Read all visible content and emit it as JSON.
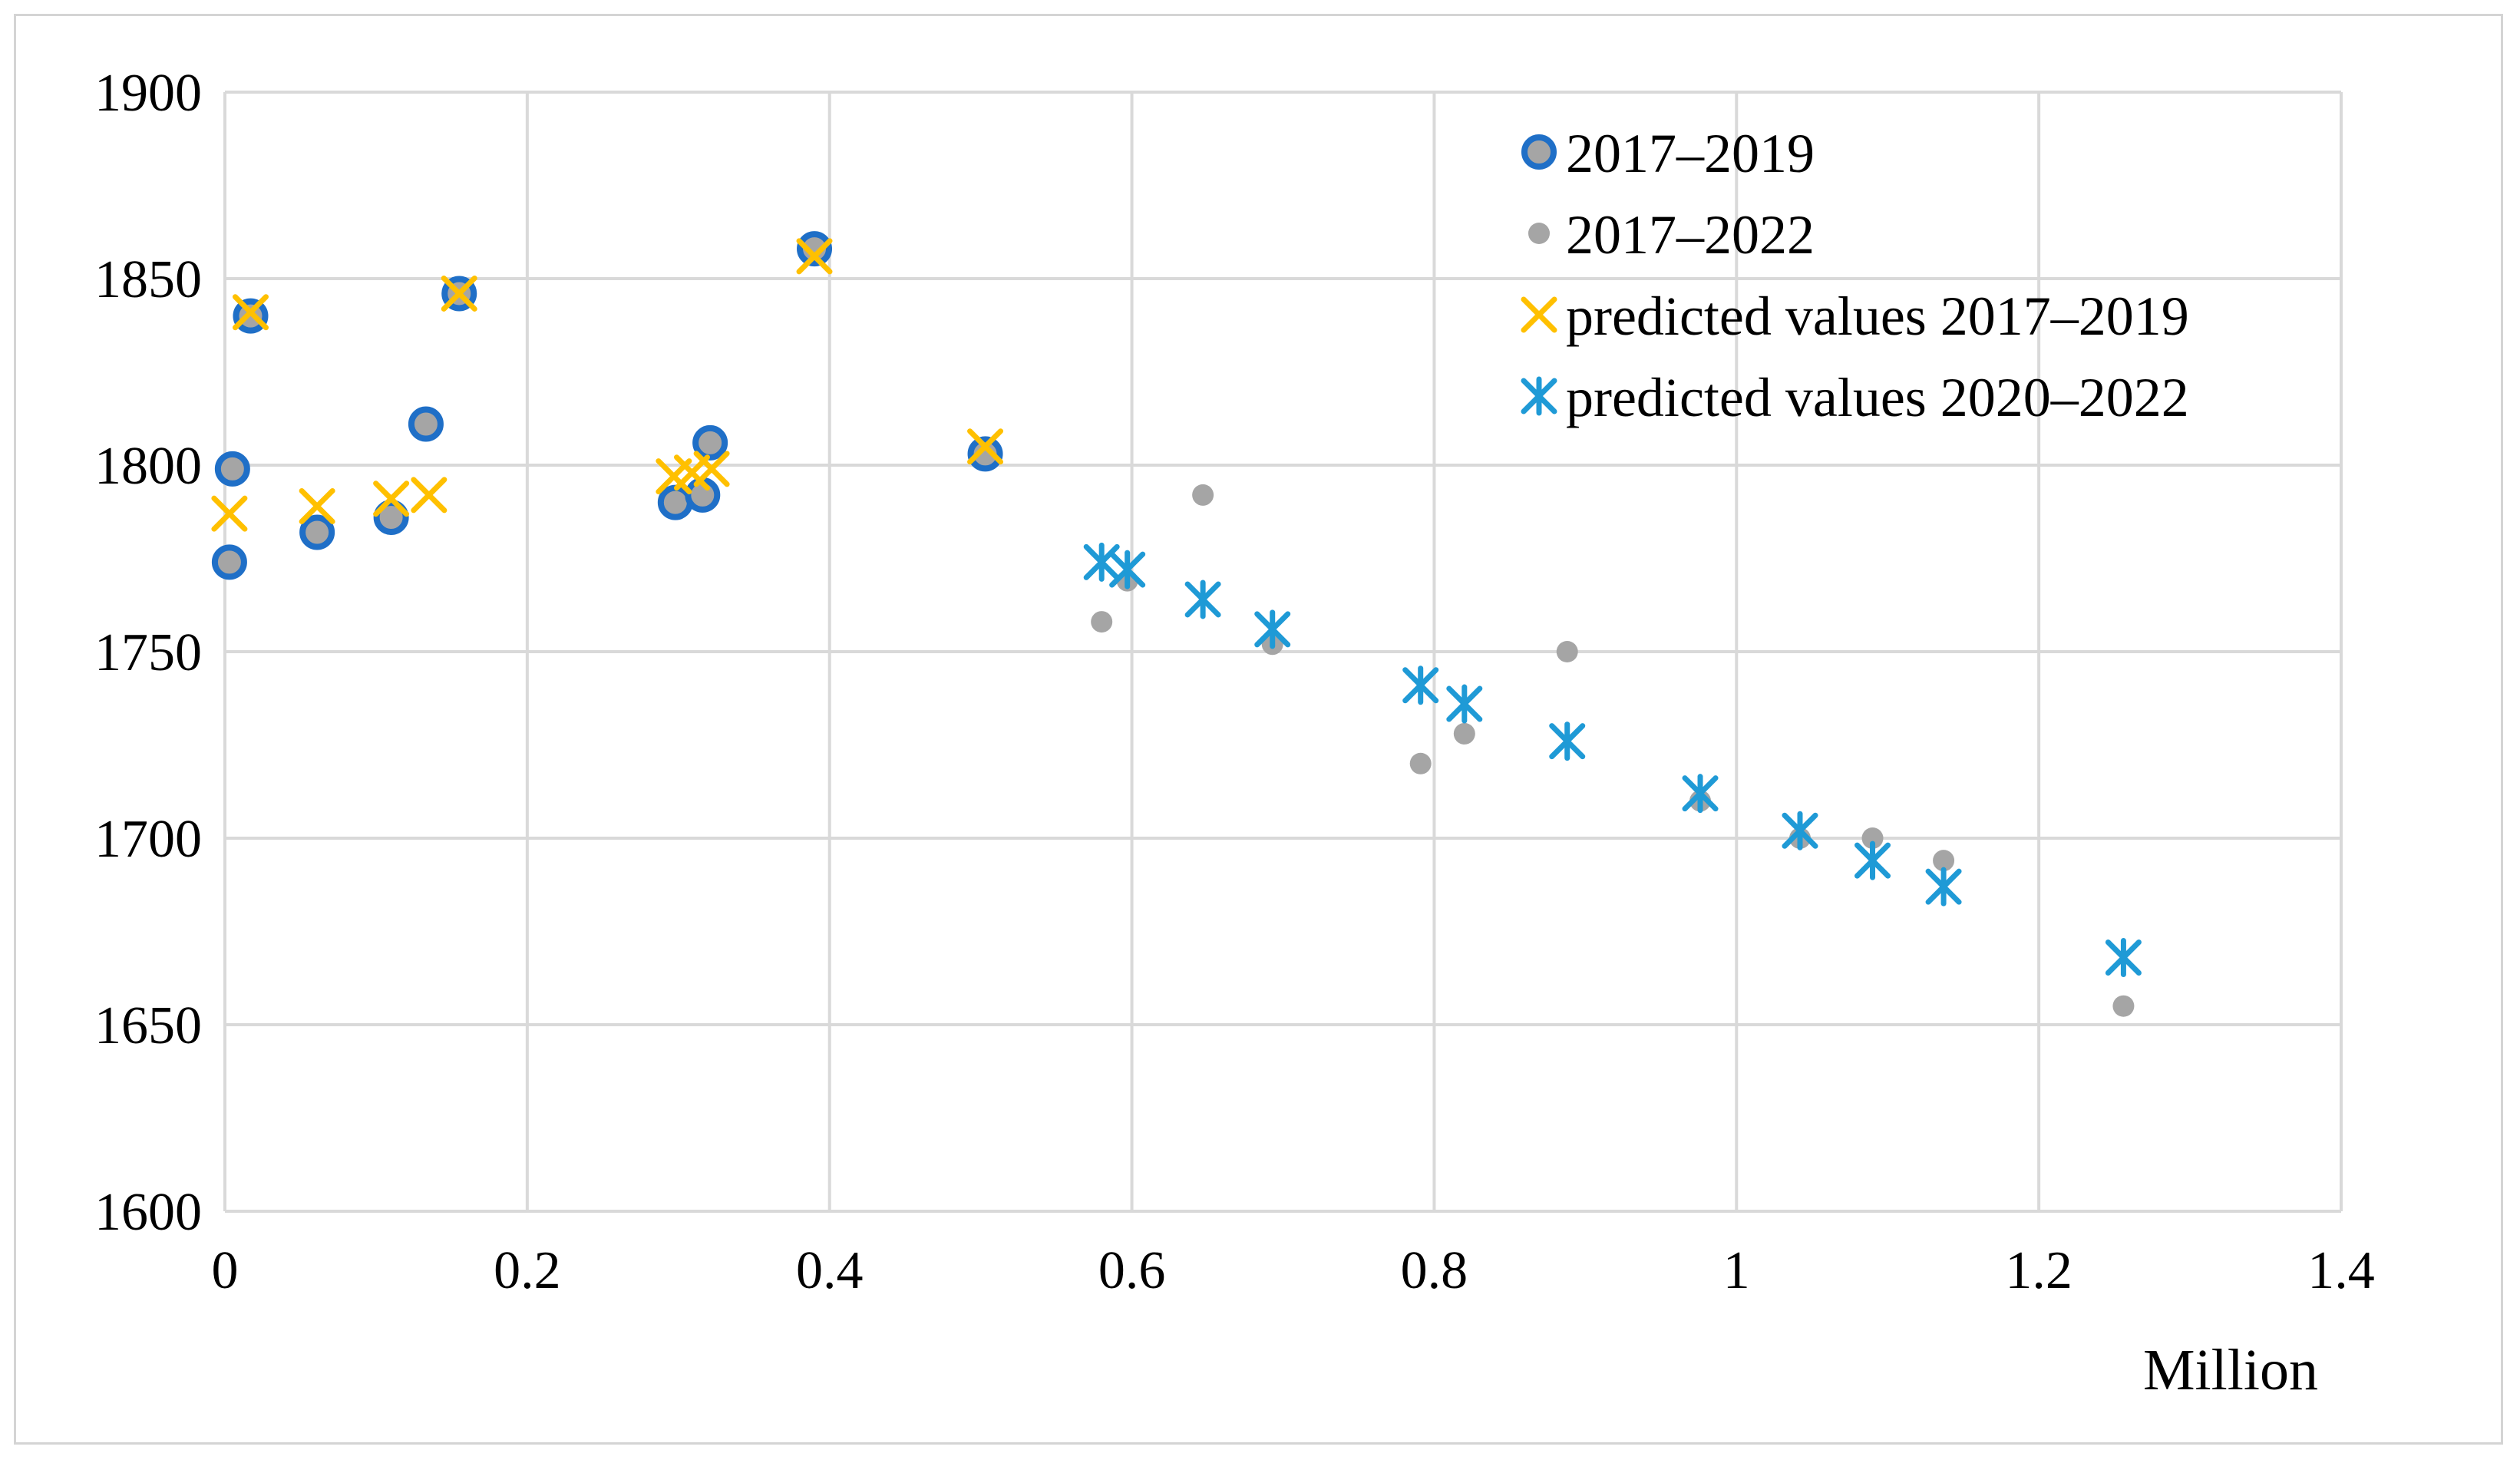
{
  "chart_data": {
    "type": "scatter",
    "title": "",
    "xlabel": "Million",
    "ylabel": "",
    "xlim": [
      0,
      1.4
    ],
    "ylim": [
      1600,
      1900
    ],
    "xticks": [
      "0",
      "0.2",
      "0.4",
      "0.6",
      "0.8",
      "1",
      "1.2",
      "1.4"
    ],
    "yticks": [
      "1600",
      "1650",
      "1700",
      "1750",
      "1800",
      "1850",
      "1900"
    ],
    "grid": true,
    "legend_position": "top-right",
    "colors": {
      "s2017_2019_fill": "#a5a5a5",
      "s2017_2019_edge": "#1f6fc7",
      "s2017_2022": "#a5a5a5",
      "pred_2017_2019": "#ffc000",
      "pred_2020_2022": "#1f9ad6",
      "grid": "#d9d9d9"
    },
    "series": [
      {
        "name": "2017–2019",
        "marker": "circle",
        "points": [
          [
            0.003,
            1774
          ],
          [
            0.005,
            1799
          ],
          [
            0.017,
            1840
          ],
          [
            0.061,
            1782
          ],
          [
            0.11,
            1786
          ],
          [
            0.133,
            1811
          ],
          [
            0.155,
            1846
          ],
          [
            0.298,
            1790
          ],
          [
            0.316,
            1792
          ],
          [
            0.321,
            1806
          ],
          [
            0.39,
            1858
          ],
          [
            0.503,
            1803
          ]
        ]
      },
      {
        "name": "2017–2022",
        "marker": "dot",
        "points": [
          [
            0.58,
            1758
          ],
          [
            0.597,
            1769
          ],
          [
            0.647,
            1792
          ],
          [
            0.693,
            1752
          ],
          [
            0.791,
            1720
          ],
          [
            0.82,
            1728
          ],
          [
            0.888,
            1750
          ],
          [
            0.976,
            1710
          ],
          [
            1.042,
            1700
          ],
          [
            1.09,
            1700
          ],
          [
            1.137,
            1694
          ],
          [
            1.256,
            1655
          ]
        ]
      },
      {
        "name": "predicted values 2017–2019",
        "marker": "x",
        "points": [
          [
            0.003,
            1787
          ],
          [
            0.017,
            1841
          ],
          [
            0.061,
            1789
          ],
          [
            0.11,
            1791
          ],
          [
            0.135,
            1792
          ],
          [
            0.155,
            1846
          ],
          [
            0.297,
            1797
          ],
          [
            0.309,
            1798
          ],
          [
            0.322,
            1799
          ],
          [
            0.39,
            1856
          ],
          [
            0.503,
            1805
          ]
        ]
      },
      {
        "name": "predicted values 2020–2022",
        "marker": "asterisk",
        "points": [
          [
            0.58,
            1774
          ],
          [
            0.597,
            1772
          ],
          [
            0.647,
            1764
          ],
          [
            0.693,
            1756
          ],
          [
            0.791,
            1741
          ],
          [
            0.82,
            1736
          ],
          [
            0.888,
            1726
          ],
          [
            0.976,
            1712
          ],
          [
            1.042,
            1702
          ],
          [
            1.09,
            1694
          ],
          [
            1.137,
            1687
          ],
          [
            1.256,
            1668
          ]
        ]
      }
    ]
  }
}
